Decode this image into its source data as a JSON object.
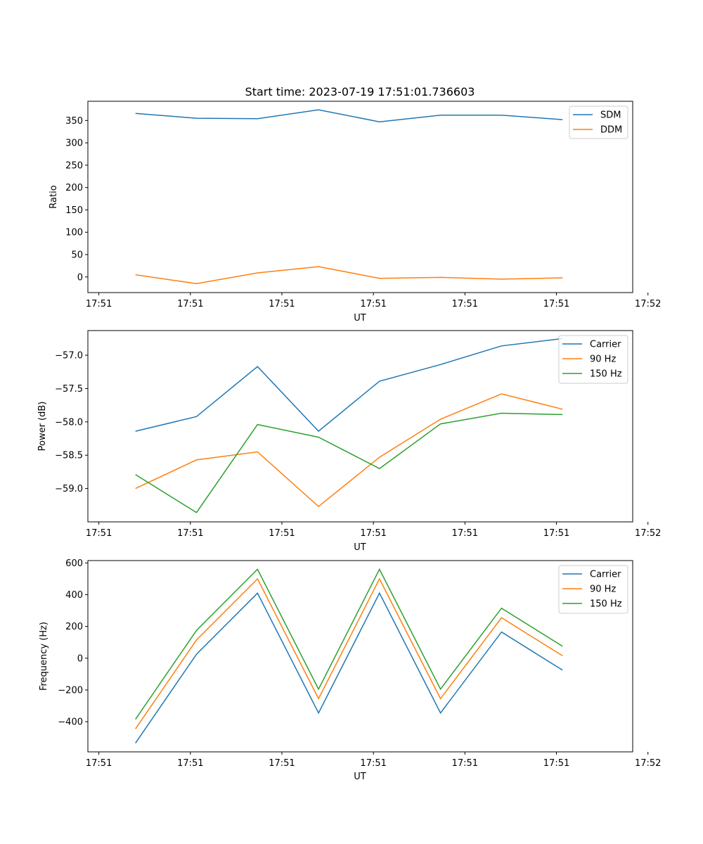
{
  "chart_data": [
    {
      "type": "line",
      "title": "Start time: 2023-07-19 17:51:01.736603",
      "xlabel": "UT",
      "ylabel": "Ratio",
      "legend_position": "top-right",
      "x": [
        1,
        2,
        3,
        4,
        5,
        6,
        7,
        8
      ],
      "xlim": [
        0.22,
        9.15
      ],
      "xticks": [
        0.4,
        1.9,
        3.4,
        4.9,
        6.4,
        7.9,
        9.4
      ],
      "xtick_labels": [
        "17:51",
        "17:51",
        "17:51",
        "17:51",
        "17:51",
        "17:51",
        "17:52"
      ],
      "ylim": [
        -35,
        393
      ],
      "yticks": [
        0,
        50,
        100,
        150,
        200,
        250,
        300,
        350
      ],
      "ytick_labels": [
        "0",
        "50",
        "100",
        "150",
        "200",
        "250",
        "300",
        "350"
      ],
      "series": [
        {
          "name": "SDM",
          "color": "#1f77b4",
          "values": [
            366,
            355,
            354,
            374,
            347,
            362,
            362,
            352
          ]
        },
        {
          "name": "DDM",
          "color": "#ff7f0e",
          "values": [
            5,
            -15,
            9,
            23,
            -3,
            -1,
            -5,
            -2
          ]
        }
      ]
    },
    {
      "type": "line",
      "title": "",
      "xlabel": "UT",
      "ylabel": "Power (dB)",
      "legend_position": "top-right",
      "x": [
        1,
        2,
        3,
        4,
        5,
        6,
        7,
        8
      ],
      "xlim": [
        0.22,
        9.15
      ],
      "xticks": [
        0.4,
        1.9,
        3.4,
        4.9,
        6.4,
        7.9,
        9.4
      ],
      "xtick_labels": [
        "17:51",
        "17:51",
        "17:51",
        "17:51",
        "17:51",
        "17:51",
        "17:52"
      ],
      "ylim": [
        -59.5,
        -56.63
      ],
      "yticks": [
        -59.0,
        -58.5,
        -58.0,
        -57.5,
        -57.0
      ],
      "ytick_labels": [
        "−59.0",
        "−58.5",
        "−58.0",
        "−57.5",
        "−57.0"
      ],
      "series": [
        {
          "name": "Carrier",
          "color": "#1f77b4",
          "values": [
            -58.14,
            -57.92,
            -57.17,
            -58.14,
            -57.39,
            -57.14,
            -56.86,
            -56.75
          ]
        },
        {
          "name": "90 Hz",
          "color": "#ff7f0e",
          "values": [
            -59.0,
            -58.57,
            -58.45,
            -59.27,
            -58.53,
            -57.96,
            -57.58,
            -57.81
          ]
        },
        {
          "name": "150 Hz",
          "color": "#2ca02c",
          "values": [
            -58.79,
            -59.36,
            -58.04,
            -58.23,
            -58.7,
            -58.03,
            -57.87,
            -57.89
          ]
        }
      ]
    },
    {
      "type": "line",
      "title": "",
      "xlabel": "UT",
      "ylabel": "Frequency (Hz)",
      "legend_position": "top-right",
      "x": [
        1,
        2,
        3,
        4,
        5,
        6,
        7,
        8
      ],
      "xlim": [
        0.22,
        9.15
      ],
      "xticks": [
        0.4,
        1.9,
        3.4,
        4.9,
        6.4,
        7.9,
        9.4
      ],
      "xtick_labels": [
        "17:51",
        "17:51",
        "17:51",
        "17:51",
        "17:51",
        "17:51",
        "17:52"
      ],
      "ylim": [
        -590,
        615
      ],
      "yticks": [
        -400,
        -200,
        0,
        200,
        400,
        600
      ],
      "ytick_labels": [
        "−400",
        "−200",
        "0",
        "200",
        "400",
        "600"
      ],
      "series": [
        {
          "name": "Carrier",
          "color": "#1f77b4",
          "values": [
            -535,
            25,
            410,
            -345,
            410,
            -345,
            165,
            -75
          ]
        },
        {
          "name": "90 Hz",
          "color": "#ff7f0e",
          "values": [
            -445,
            115,
            500,
            -255,
            500,
            -255,
            255,
            15
          ]
        },
        {
          "name": "150 Hz",
          "color": "#2ca02c",
          "values": [
            -385,
            175,
            560,
            -195,
            560,
            -195,
            315,
            75
          ]
        }
      ]
    }
  ]
}
